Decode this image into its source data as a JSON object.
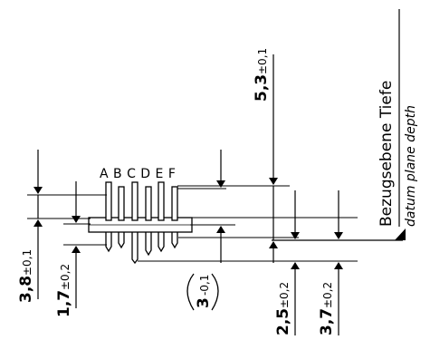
{
  "datum_plane": {
    "title_de": "Bezugsebene Tiefe",
    "title_en": "datum plane depth"
  },
  "pin_letters": "A B C D E F",
  "dimensions": {
    "d38": {
      "value": "3,8",
      "tol": "±0,1"
    },
    "d17": {
      "value": "1,7",
      "tol": "±0,2"
    },
    "d3": {
      "value": "3",
      "tol": "-0,1"
    },
    "d53": {
      "value": "5,3",
      "tol": "±0,1"
    },
    "d25": {
      "value": "2,5",
      "tol": "±0,2"
    },
    "d37": {
      "value": "3,7",
      "tol": "±0,2"
    }
  }
}
